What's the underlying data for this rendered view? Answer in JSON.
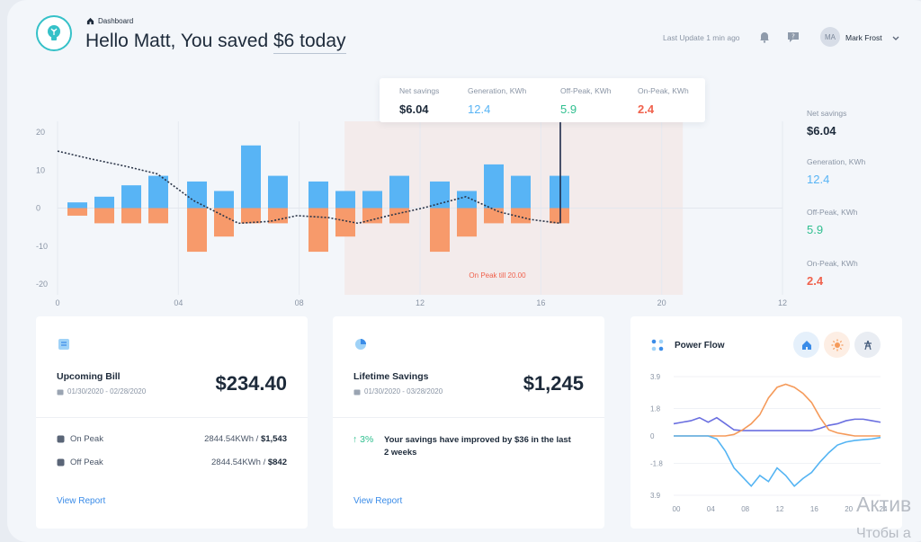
{
  "header": {
    "breadcrumb": "Dashboard",
    "greeting_prefix": "Hello Matt, You saved ",
    "greeting_amount": "$6 today",
    "last_update": "Last Update 1 min ago",
    "user_initials": "MA",
    "user_name": "Mark Frost"
  },
  "tooltip": {
    "net_label": "Net savings",
    "net_value": "$6.04",
    "gen_label": "Generation, KWh",
    "gen_value": "12.4",
    "off_label": "Off-Peak, KWh",
    "off_value": "5.9",
    "on_label": "On-Peak, KWh",
    "on_value": "2.4"
  },
  "side_summary": {
    "net_label": "Net savings",
    "net_value": "$6.04",
    "gen_label": "Generation, KWh",
    "gen_value": "12.4",
    "off_label": "Off-Peak, KWh",
    "off_value": "5.9",
    "on_label": "On-Peak, KWh",
    "on_value": "2.4"
  },
  "colors": {
    "generation": "#58b4f5",
    "consumption": "#f79a6b",
    "on_peak_zone": "#f3ebeb",
    "off_peak": "#2fbf8f",
    "on_peak": "#f0624d",
    "link": "#3b8ce8"
  },
  "chart_data": [
    {
      "type": "bar",
      "on_peak_label": "On Peak till 20.00",
      "x_ticks": [
        "0",
        "04",
        "08",
        "12",
        "16",
        "20",
        "12"
      ],
      "y_ticks": [
        "20",
        "10",
        "0",
        "-10",
        "-20"
      ],
      "ylim": [
        -20,
        20
      ],
      "series": [
        {
          "name": "Generation, KWh",
          "values": [
            1.5,
            3,
            6,
            8.5,
            7,
            4.5,
            16.5,
            8.5,
            7,
            4.5,
            4.5,
            8.5,
            7,
            4.5,
            11.5,
            8.5,
            8.5
          ]
        },
        {
          "name": "Off-Peak, KWh",
          "values": [
            -2,
            -4,
            -4,
            -4,
            -11.5,
            -7.5,
            -4,
            -4,
            -11.5,
            -7.5,
            -4,
            -4,
            -11.5,
            -7.5,
            -4,
            -4,
            -4
          ]
        }
      ],
      "net_line": [
        15,
        13,
        11,
        9,
        2,
        -4,
        -3.5,
        -2,
        -2.5,
        -4,
        -2,
        0,
        3,
        -1,
        -3,
        -4
      ]
    },
    {
      "type": "line",
      "title": "Power Flow",
      "x_ticks": [
        "00",
        "04",
        "08",
        "12",
        "16",
        "20",
        "24"
      ],
      "y_ticks": [
        "3.9",
        "1.8",
        "0",
        "-1.8",
        "3.9"
      ],
      "ylim": [
        -3.9,
        3.9
      ],
      "series": [
        {
          "color": "#6a6fe0",
          "values": [
            0.8,
            0.9,
            1.0,
            1.2,
            0.9,
            1.2,
            0.8,
            0.4,
            0.35,
            0.35,
            0.35,
            0.35,
            0.35,
            0.35,
            0.35,
            0.35,
            0.35,
            0.5,
            0.7,
            0.8,
            1.0,
            1.1,
            1.1,
            1.0,
            0.9
          ]
        },
        {
          "color": "#f59a5a",
          "values": [
            0,
            0,
            0,
            0,
            0,
            0,
            0,
            0.1,
            0.4,
            0.8,
            1.4,
            2.5,
            3.2,
            3.4,
            3.2,
            2.8,
            2.2,
            1.2,
            0.4,
            0.2,
            0.1,
            0,
            0,
            0,
            0
          ]
        },
        {
          "color": "#54b4f3",
          "values": [
            0,
            0,
            0,
            0,
            0,
            -0.2,
            -1.0,
            -2.1,
            -2.7,
            -3.3,
            -2.6,
            -3.0,
            -2.1,
            -2.6,
            -3.3,
            -2.8,
            -2.4,
            -1.7,
            -1.1,
            -0.6,
            -0.4,
            -0.3,
            -0.25,
            -0.2,
            -0.1
          ]
        }
      ]
    }
  ],
  "bill": {
    "title": "Upcoming Bill",
    "dates": "01/30/2020 - 02/28/2020",
    "amount": "$234.40",
    "on_peak_label": "On Peak",
    "on_peak_kwh": "2844.54KWh / ",
    "on_peak_cost": "$1,543",
    "off_peak_label": "Off Peak",
    "off_peak_kwh": "2844.54KWh / ",
    "off_peak_cost": "$842",
    "link": "View Report"
  },
  "savings": {
    "title": "Lifetime Savings",
    "dates": "01/30/2020 - 03/28/2020",
    "amount": "$1,245",
    "percent": "↑ 3%",
    "message": "Your savings have improved by $36 in the last 2 weeks",
    "link": "View Report"
  },
  "power_flow": {
    "title": "Power Flow"
  },
  "watermark": {
    "line1": "Актив",
    "line2": "Чтобы а"
  }
}
